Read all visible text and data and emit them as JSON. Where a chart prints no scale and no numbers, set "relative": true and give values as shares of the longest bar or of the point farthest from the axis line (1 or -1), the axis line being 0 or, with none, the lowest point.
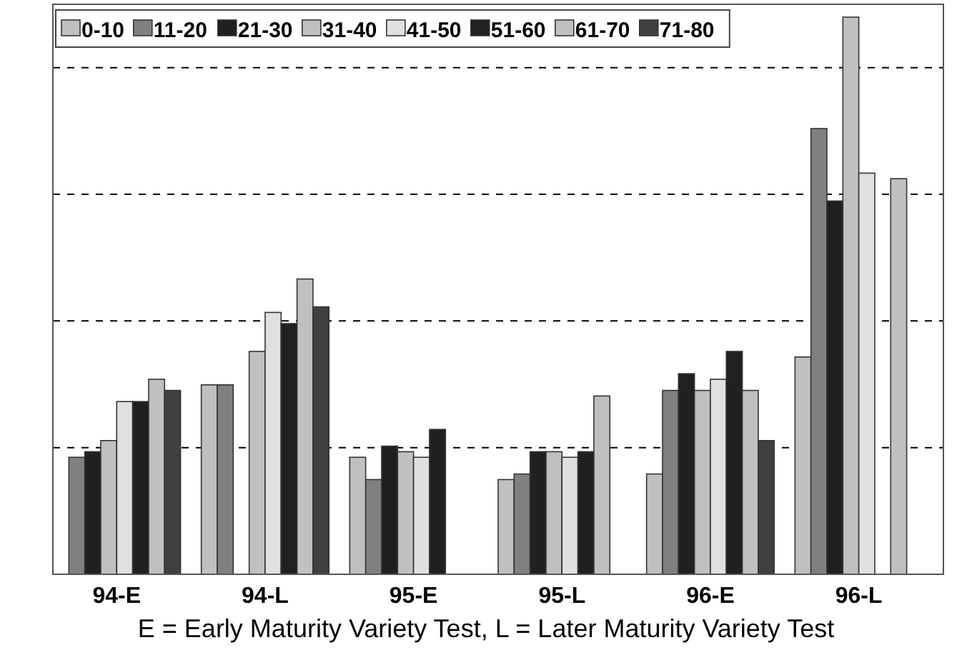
{
  "chart_data": {
    "type": "bar",
    "relative": true,
    "categories": [
      "94-E",
      "94-L",
      "95-E",
      "95-L",
      "96-E",
      "96-L"
    ],
    "series": [
      {
        "name": "0-10",
        "color": "#c0c0c0",
        "values": [
          null,
          0.34,
          0.21,
          0.17,
          0.18,
          0.39
        ]
      },
      {
        "name": "11-20",
        "color": "#808080",
        "values": [
          0.21,
          0.34,
          0.17,
          0.18,
          0.33,
          0.8
        ]
      },
      {
        "name": "21-30",
        "color": "#202020",
        "values": [
          0.22,
          null,
          0.23,
          0.22,
          0.36,
          0.67
        ]
      },
      {
        "name": "31-40",
        "color": "#c0c0c0",
        "values": [
          0.24,
          0.4,
          0.22,
          0.22,
          0.33,
          1
        ]
      },
      {
        "name": "41-50",
        "color": "#e0e0e0",
        "values": [
          0.31,
          0.47,
          0.21,
          0.21,
          0.35,
          0.72
        ]
      },
      {
        "name": "51-60",
        "color": "#202020",
        "values": [
          0.31,
          0.45,
          0.26,
          0.22,
          0.4,
          null
        ]
      },
      {
        "name": "61-70",
        "color": "#c0c0c0",
        "values": [
          0.35,
          0.53,
          null,
          0.32,
          0.33,
          0.71
        ]
      },
      {
        "name": "71-80",
        "color": "#404040",
        "values": [
          0.33,
          0.48,
          null,
          null,
          0.24,
          null
        ]
      }
    ],
    "grid": "y",
    "legend": "top left",
    "annotations": [
      "E = Early Maturity Variety Test,  L = Later Maturity Variety Test"
    ]
  }
}
